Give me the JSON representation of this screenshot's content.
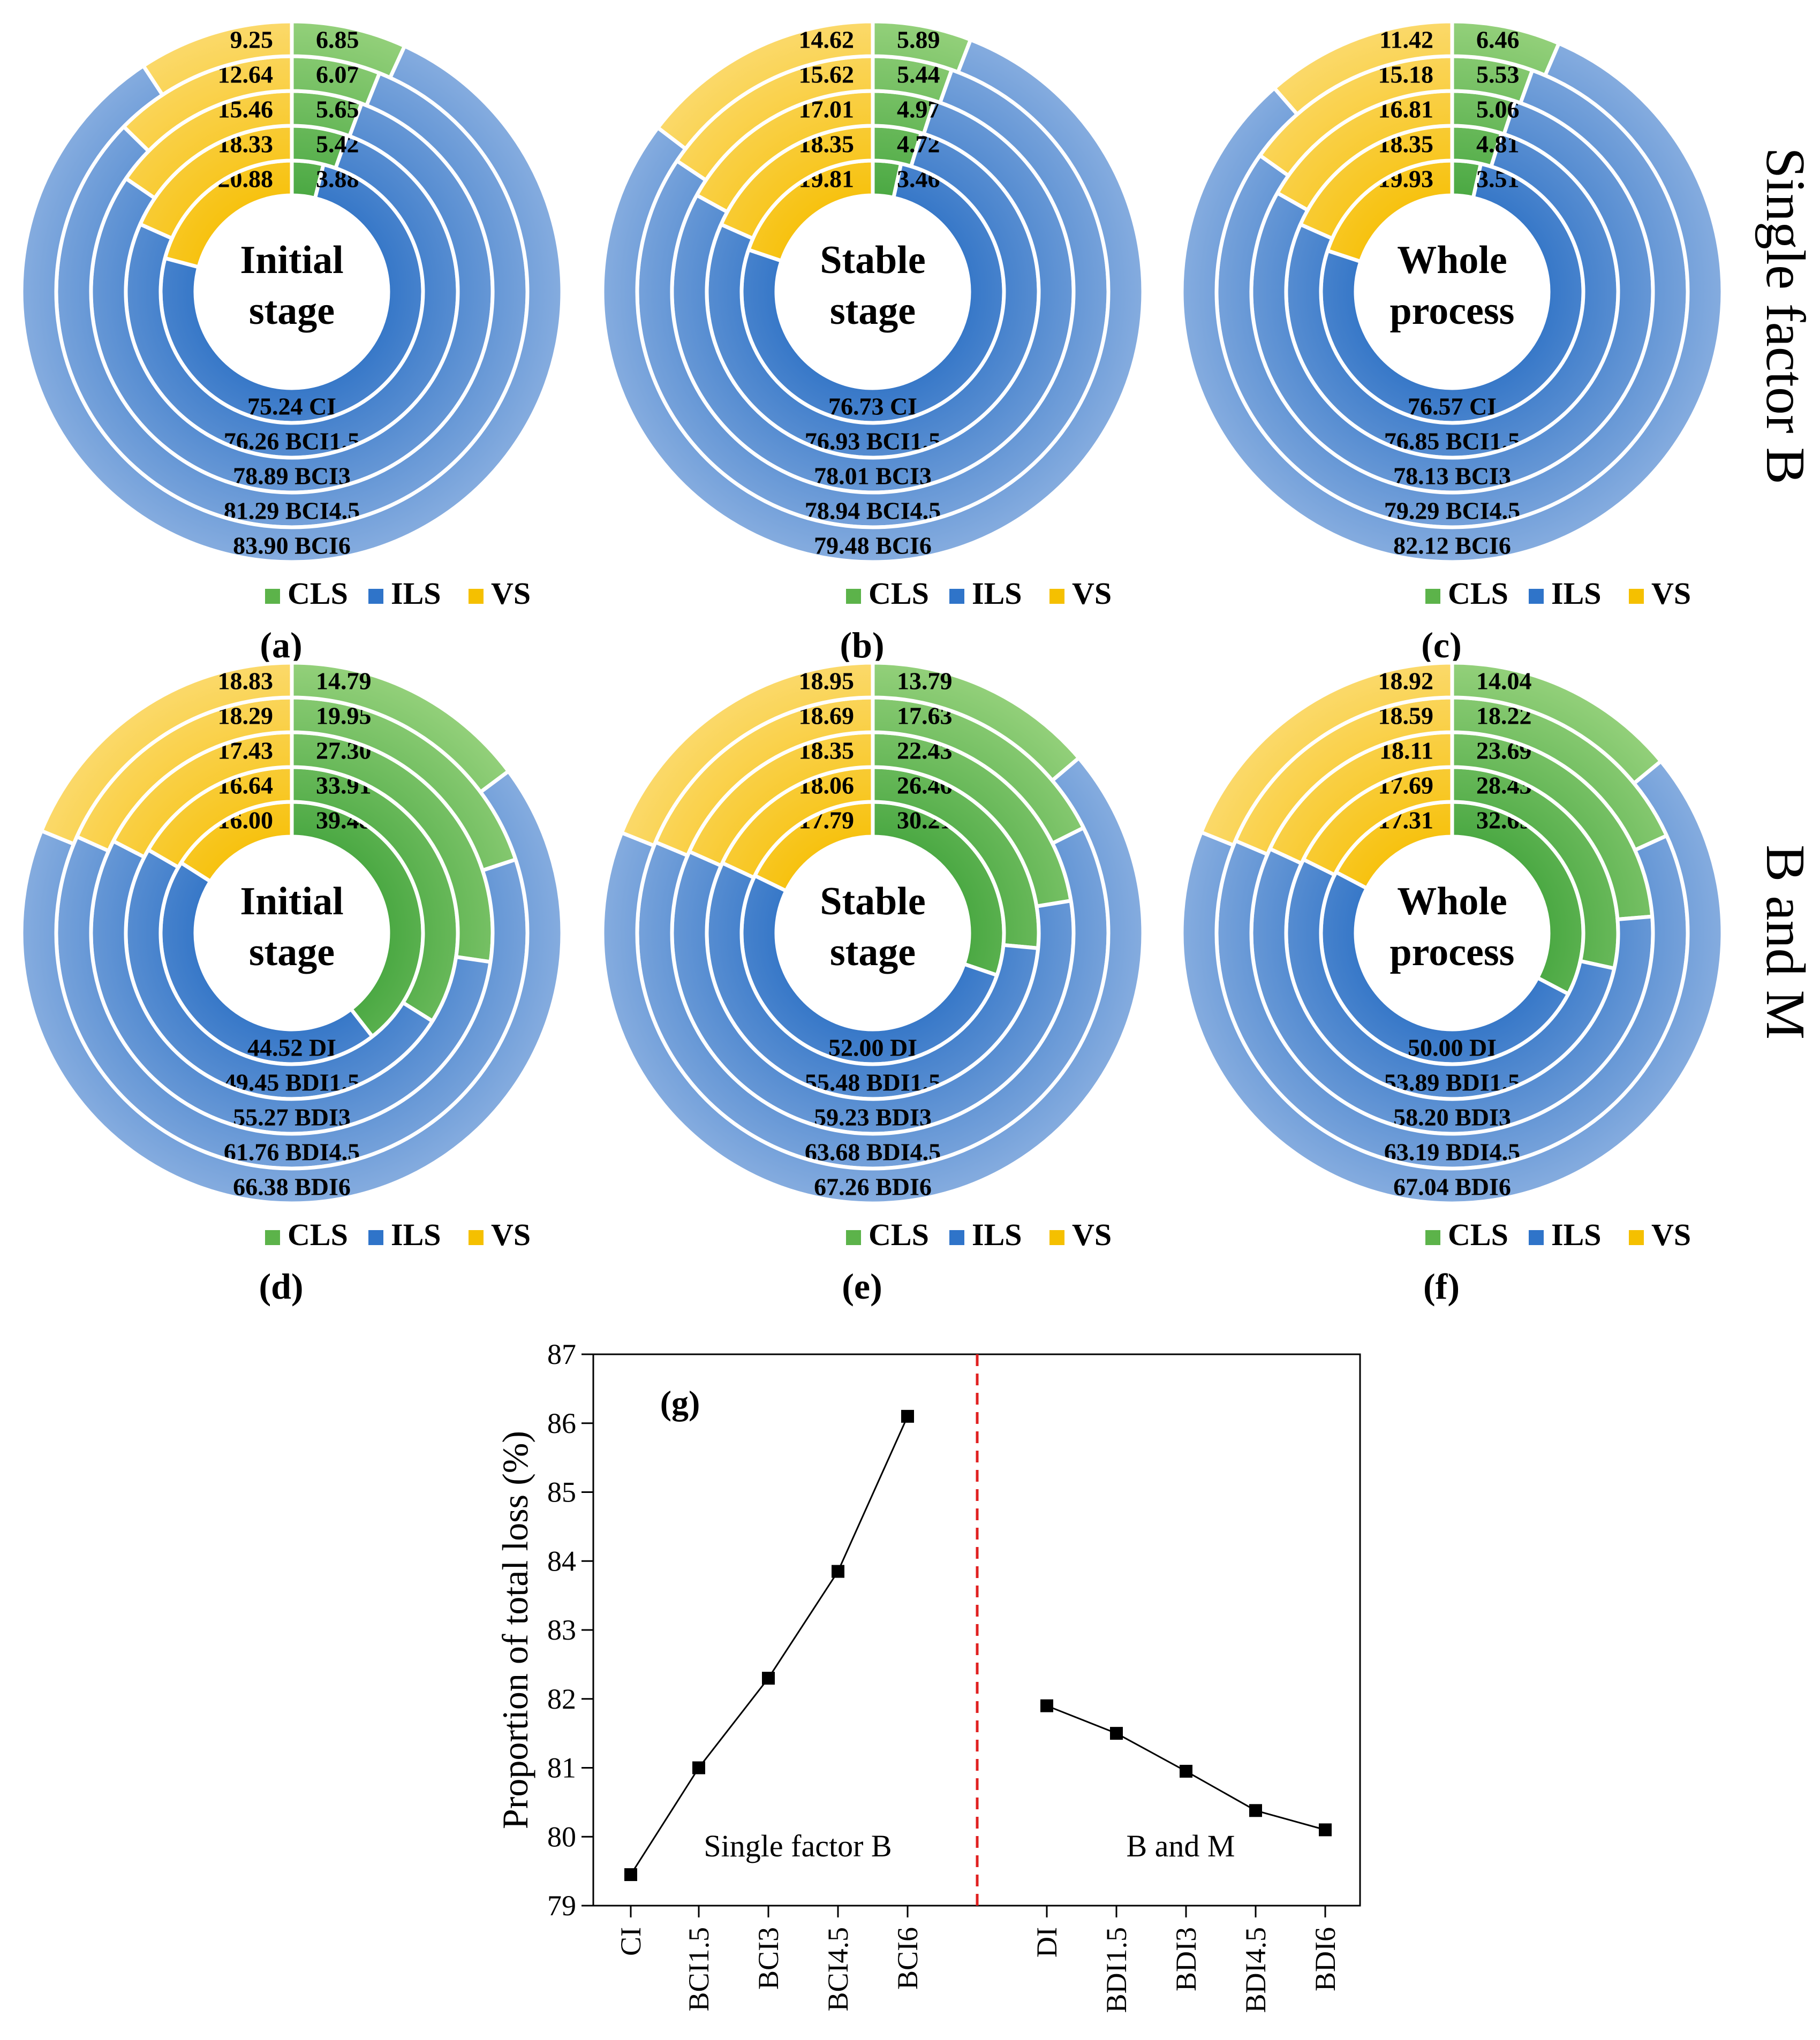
{
  "figure": {
    "row_labels": [
      "Single factor B",
      "B and M"
    ],
    "legend": [
      {
        "key": "cls",
        "label": "CLS",
        "color": "#5cb34a"
      },
      {
        "key": "ils",
        "label": "ILS",
        "color": "#2f74c9"
      },
      {
        "key": "vs",
        "label": "VS",
        "color": "#f5c000"
      }
    ]
  },
  "chart_data": [
    {
      "type": "nested-donut",
      "panel": "(a)",
      "center": [
        "Initial",
        "stage"
      ],
      "rings": [
        {
          "name": "CI",
          "cls": 3.88,
          "ils": 75.24,
          "vs": 20.88
        },
        {
          "name": "BCI1.5",
          "cls": 5.42,
          "ils": 76.26,
          "vs": 18.33
        },
        {
          "name": "BCI3",
          "cls": 5.65,
          "ils": 78.89,
          "vs": 15.46
        },
        {
          "name": "BCI4.5",
          "cls": 6.07,
          "ils": 81.29,
          "vs": 12.64
        },
        {
          "name": "BCI6",
          "cls": 6.85,
          "ils": 83.9,
          "vs": 9.25
        }
      ]
    },
    {
      "type": "nested-donut",
      "panel": "(b)",
      "center": [
        "Stable",
        "stage"
      ],
      "rings": [
        {
          "name": "CI",
          "cls": 3.46,
          "ils": 76.73,
          "vs": 19.81
        },
        {
          "name": "BCI1.5",
          "cls": 4.72,
          "ils": 76.93,
          "vs": 18.35
        },
        {
          "name": "BCI3",
          "cls": 4.97,
          "ils": 78.01,
          "vs": 17.01
        },
        {
          "name": "BCI4.5",
          "cls": 5.44,
          "ils": 78.94,
          "vs": 15.62
        },
        {
          "name": "BCI6",
          "cls": 5.89,
          "ils": 79.48,
          "vs": 14.62
        }
      ]
    },
    {
      "type": "nested-donut",
      "panel": "(c)",
      "center": [
        "Whole",
        "process"
      ],
      "rings": [
        {
          "name": "CI",
          "cls": 3.51,
          "ils": 76.57,
          "vs": 19.93
        },
        {
          "name": "BCI1.5",
          "cls": 4.81,
          "ils": 76.85,
          "vs": 18.35
        },
        {
          "name": "BCI3",
          "cls": 5.06,
          "ils": 78.13,
          "vs": 16.81
        },
        {
          "name": "BCI4.5",
          "cls": 5.53,
          "ils": 79.29,
          "vs": 15.18
        },
        {
          "name": "BCI6",
          "cls": 6.46,
          "ils": 82.12,
          "vs": 11.42
        }
      ]
    },
    {
      "type": "nested-donut",
      "panel": "(d)",
      "center": [
        "Initial",
        "stage"
      ],
      "rings": [
        {
          "name": "DI",
          "cls": 39.48,
          "ils": 44.52,
          "vs": 16.0
        },
        {
          "name": "BDI1.5",
          "cls": 33.91,
          "ils": 49.45,
          "vs": 16.64
        },
        {
          "name": "BDI3",
          "cls": 27.3,
          "ils": 55.27,
          "vs": 17.43
        },
        {
          "name": "BDI4.5",
          "cls": 19.95,
          "ils": 61.76,
          "vs": 18.29
        },
        {
          "name": "BDI6",
          "cls": 14.79,
          "ils": 66.38,
          "vs": 18.83
        }
      ]
    },
    {
      "type": "nested-donut",
      "panel": "(e)",
      "center": [
        "Stable",
        "stage"
      ],
      "rings": [
        {
          "name": "DI",
          "cls": 30.21,
          "ils": 52.0,
          "vs": 17.79
        },
        {
          "name": "BDI1.5",
          "cls": 26.46,
          "ils": 55.48,
          "vs": 18.06
        },
        {
          "name": "BDI3",
          "cls": 22.43,
          "ils": 59.23,
          "vs": 18.35
        },
        {
          "name": "BDI4.5",
          "cls": 17.63,
          "ils": 63.68,
          "vs": 18.69
        },
        {
          "name": "BDI6",
          "cls": 13.79,
          "ils": 67.26,
          "vs": 18.95
        }
      ]
    },
    {
      "type": "nested-donut",
      "panel": "(f)",
      "center": [
        "Whole",
        "process"
      ],
      "rings": [
        {
          "name": "DI",
          "cls": 32.69,
          "ils": 50.0,
          "vs": 17.31
        },
        {
          "name": "BDI1.5",
          "cls": 28.43,
          "ils": 53.89,
          "vs": 17.69
        },
        {
          "name": "BDI3",
          "cls": 23.69,
          "ils": 58.2,
          "vs": 18.11
        },
        {
          "name": "BDI4.5",
          "cls": 18.22,
          "ils": 63.19,
          "vs": 18.59
        },
        {
          "name": "BDI6",
          "cls": 14.04,
          "ils": 67.04,
          "vs": 18.92
        }
      ]
    },
    {
      "type": "line",
      "panel": "(g)",
      "ylabel": "Proportion of total loss (%)",
      "ylim": [
        79,
        87
      ],
      "yticks": [
        79,
        80,
        81,
        82,
        83,
        84,
        85,
        86,
        87
      ],
      "groups": [
        {
          "label": "Single factor B",
          "categories": [
            "CI",
            "BCI1.5",
            "BCI3",
            "BCI4.5",
            "BCI6"
          ],
          "values": [
            79.45,
            81.0,
            82.3,
            83.85,
            86.1
          ]
        },
        {
          "label": "B and M",
          "categories": [
            "DI",
            "BDI1.5",
            "BDI3",
            "BDI4.5",
            "BDI6"
          ],
          "values": [
            81.9,
            81.5,
            80.95,
            80.38,
            80.1
          ]
        }
      ]
    }
  ]
}
